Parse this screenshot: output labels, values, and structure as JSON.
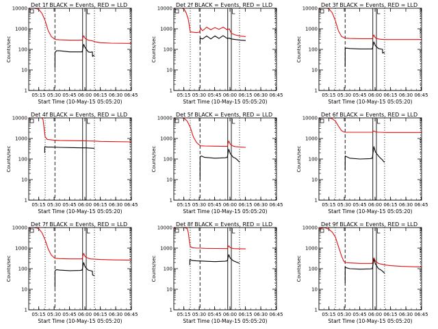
{
  "colors": {
    "events": "#000000",
    "lld": "#e01010",
    "axis": "#000000",
    "background": "#ffffff"
  },
  "figure": {
    "x_label": "Start Time (10-May-15 05:05:20)",
    "y_label": "Counts/sec",
    "x_tick_labels": [
      "05:15",
      "05:30",
      "05:45",
      "06:00",
      "06:15",
      "06:30",
      "06:45"
    ],
    "y_tick_labels": [
      "1",
      "10",
      "100",
      "1000",
      "10000"
    ]
  },
  "chart_data": [
    {
      "type": "line",
      "title": "Det 1f BLACK = Events, RED = LLD",
      "xlabel": "Start Time (10-May-15 05:05:20)",
      "ylabel": "Counts/sec",
      "x_unit": "minutes after 05:05:20",
      "ylim": [
        1,
        10000
      ],
      "y_scale": "log",
      "vlines": [
        {
          "x": 16,
          "style": "dotted"
        },
        {
          "x": 25.5,
          "style": "dashed"
        },
        {
          "x": 52.5,
          "style": "solid"
        },
        {
          "x": 56,
          "style": "solid"
        },
        {
          "x": 64,
          "style": "dotted"
        },
        {
          "x": 99,
          "style": "dotted"
        }
      ],
      "series": [
        {
          "name": "RED = LLD",
          "x": [
            0,
            2,
            5,
            8,
            10,
            13,
            16,
            19,
            22,
            25,
            26,
            30,
            40,
            52,
            53.5,
            55,
            58,
            60,
            62,
            65,
            70,
            80,
            100
          ],
          "y": [
            9500,
            10000,
            10000,
            9500,
            8500,
            5500,
            2500,
            800,
            420,
            320,
            300,
            290,
            280,
            280,
            460,
            340,
            280,
            270,
            260,
            230,
            210,
            200,
            195
          ]
        },
        {
          "name": "BLACK = Events",
          "x": [
            25.5,
            25.6,
            27,
            30,
            40,
            52,
            53.5,
            55,
            58,
            60,
            62,
            62.1,
            63,
            64
          ],
          "y": [
            12,
            70,
            85,
            85,
            75,
            75,
            175,
            120,
            75,
            72,
            75,
            45,
            50,
            48
          ]
        }
      ]
    },
    {
      "type": "line",
      "title": "Det 2f BLACK = Events, RED = LLD",
      "xlabel": "Start Time (10-May-15 05:05:20)",
      "ylabel": "Counts/sec",
      "x_unit": "minutes after 05:05:20",
      "ylim": [
        1,
        10000
      ],
      "y_scale": "log",
      "vlines": [
        {
          "x": 16,
          "style": "dotted"
        },
        {
          "x": 25.5,
          "style": "dashed"
        },
        {
          "x": 52.5,
          "style": "solid"
        },
        {
          "x": 56,
          "style": "solid"
        },
        {
          "x": 64,
          "style": "dotted"
        },
        {
          "x": 99,
          "style": "dotted"
        }
      ],
      "series": [
        {
          "name": "RED = LLD",
          "x": [
            0,
            2,
            5,
            8,
            10,
            12,
            14,
            15,
            16,
            22,
            25,
            26,
            28,
            32,
            36,
            40,
            44,
            48,
            52,
            54,
            56,
            60,
            65,
            70
          ],
          "y": [
            9500,
            10000,
            10000,
            10000,
            9000,
            6000,
            3000,
            1500,
            700,
            650,
            680,
            1100,
            800,
            1200,
            900,
            1150,
            950,
            1200,
            900,
            1000,
            600,
            500,
            440,
            420
          ]
        },
        {
          "name": "BLACK = Events",
          "x": [
            25.5,
            25.6,
            28,
            32,
            36,
            40,
            44,
            48,
            52,
            54,
            56,
            60,
            65,
            70
          ],
          "y": [
            200,
            350,
            320,
            450,
            320,
            450,
            340,
            460,
            340,
            350,
            320,
            300,
            280,
            270
          ]
        }
      ]
    },
    {
      "type": "line",
      "title": "Det 3f BLACK = Events, RED = LLD",
      "xlabel": "Start Time (10-May-15 05:05:20)",
      "ylabel": "Counts/sec",
      "x_unit": "minutes after 05:05:20",
      "ylim": [
        1,
        10000
      ],
      "y_scale": "log",
      "vlines": [
        {
          "x": 16,
          "style": "dotted"
        },
        {
          "x": 25.5,
          "style": "dashed"
        },
        {
          "x": 52.5,
          "style": "solid"
        },
        {
          "x": 56,
          "style": "solid"
        },
        {
          "x": 64,
          "style": "dotted"
        },
        {
          "x": 99,
          "style": "dotted"
        }
      ],
      "series": [
        {
          "name": "RED = LLD",
          "x": [
            0,
            2,
            5,
            8,
            10,
            13,
            16,
            19,
            22,
            25,
            26,
            30,
            40,
            52,
            53.5,
            55,
            58,
            60,
            64,
            70,
            80,
            100
          ],
          "y": [
            9500,
            10000,
            10000,
            10000,
            9000,
            6000,
            2500,
            800,
            420,
            360,
            350,
            340,
            330,
            330,
            500,
            360,
            320,
            310,
            300,
            300,
            300,
            300
          ]
        },
        {
          "name": "BLACK = Events",
          "x": [
            25.5,
            25.6,
            27,
            30,
            40,
            52,
            53.5,
            55,
            58,
            60,
            62,
            62.1,
            63,
            64
          ],
          "y": [
            14,
            110,
            115,
            110,
            105,
            105,
            230,
            150,
            110,
            105,
            100,
            65,
            70,
            65
          ]
        }
      ]
    },
    {
      "type": "line",
      "title": "Det 4f BLACK = Events, RED = LLD",
      "xlabel": "Start Time (10-May-15 05:05:20)",
      "ylabel": "Counts/sec",
      "x_unit": "minutes after 05:05:20",
      "ylim": [
        1,
        10000
      ],
      "y_scale": "log",
      "vlines": [
        {
          "x": 16,
          "style": "dotted"
        },
        {
          "x": 25.5,
          "style": "dashed"
        },
        {
          "x": 52.5,
          "style": "solid"
        },
        {
          "x": 56,
          "style": "solid"
        },
        {
          "x": 64,
          "style": "dotted"
        },
        {
          "x": 99,
          "style": "dotted"
        }
      ],
      "series": [
        {
          "name": "RED = LLD",
          "x": [
            0,
            1,
            2,
            5,
            8,
            10,
            13,
            14,
            15,
            16,
            18,
            22,
            25,
            26,
            30,
            40,
            52,
            56,
            60,
            65,
            70,
            80,
            100
          ],
          "y": [
            9000,
            10000,
            10000,
            10000,
            10000,
            10000,
            10000,
            8000,
            3000,
            1200,
            900,
            850,
            820,
            820,
            800,
            780,
            770,
            760,
            750,
            740,
            720,
            700,
            680
          ]
        },
        {
          "name": "BLACK = Events",
          "x": [
            15.5,
            15.6,
            18,
            22,
            30,
            40,
            52,
            56,
            60,
            64
          ],
          "y": [
            200,
            400,
            380,
            380,
            370,
            360,
            350,
            350,
            340,
            330
          ]
        }
      ]
    },
    {
      "type": "line",
      "title": "Det 5f BLACK = Events, RED = LLD",
      "xlabel": "Start Time (10-May-15 05:05:20)",
      "ylabel": "Counts/sec",
      "x_unit": "minutes after 05:05:20",
      "ylim": [
        1,
        10000
      ],
      "y_scale": "log",
      "vlines": [
        {
          "x": 16,
          "style": "dotted"
        },
        {
          "x": 25.5,
          "style": "dashed"
        },
        {
          "x": 52.5,
          "style": "solid"
        },
        {
          "x": 56,
          "style": "solid"
        },
        {
          "x": 64,
          "style": "dotted"
        },
        {
          "x": 99,
          "style": "dotted"
        }
      ],
      "series": [
        {
          "name": "RED = LLD",
          "x": [
            0,
            2,
            5,
            8,
            10,
            13,
            16,
            19,
            22,
            24,
            25,
            26,
            30,
            40,
            52,
            53.5,
            55,
            58,
            60,
            65,
            70
          ],
          "y": [
            9500,
            10000,
            10000,
            10000,
            9500,
            7000,
            3500,
            1200,
            650,
            520,
            480,
            440,
            430,
            420,
            410,
            750,
            520,
            420,
            400,
            380,
            370
          ]
        },
        {
          "name": "BLACK = Events",
          "x": [
            25.5,
            25.6,
            27,
            30,
            40,
            50,
            52,
            53.5,
            55,
            58,
            60,
            62,
            64
          ],
          "y": [
            10,
            130,
            140,
            120,
            110,
            115,
            120,
            300,
            180,
            120,
            110,
            90,
            70
          ]
        }
      ]
    },
    {
      "type": "line",
      "title": "Det 6f BLACK = Events, RED = LLD",
      "xlabel": "Start Time (10-May-15 05:05:20)",
      "ylabel": "Counts/sec",
      "x_unit": "minutes after 05:05:20",
      "ylim": [
        1,
        10000
      ],
      "y_scale": "log",
      "vlines": [
        {
          "x": 16,
          "style": "dotted"
        },
        {
          "x": 25.5,
          "style": "dashed"
        },
        {
          "x": 52.5,
          "style": "solid"
        },
        {
          "x": 56,
          "style": "solid"
        },
        {
          "x": 64,
          "style": "dotted"
        },
        {
          "x": 99,
          "style": "dotted"
        }
      ],
      "series": [
        {
          "name": "RED = LLD",
          "x": [
            0,
            2,
            5,
            8,
            10,
            13,
            16,
            19,
            22,
            24,
            25,
            26,
            30,
            40,
            52,
            53.5,
            55,
            58,
            60,
            65,
            70,
            80,
            100
          ],
          "y": [
            9500,
            10000,
            10000,
            10000,
            10000,
            9000,
            7000,
            4000,
            2400,
            2100,
            2050,
            2000,
            2000,
            2000,
            2000,
            2300,
            2100,
            2000,
            2000,
            1950,
            1950,
            1950,
            1950
          ]
        },
        {
          "name": "BLACK = Events",
          "x": [
            25.5,
            25.6,
            27,
            30,
            40,
            50,
            52,
            53.5,
            55,
            58,
            60,
            62,
            63,
            64
          ],
          "y": [
            30,
            140,
            130,
            110,
            100,
            105,
            110,
            400,
            220,
            140,
            110,
            90,
            75,
            70
          ]
        }
      ]
    },
    {
      "type": "line",
      "title": "Det 7f BLACK = Events, RED = LLD",
      "xlabel": "Start Time (10-May-15 05:05:20)",
      "ylabel": "Counts/sec",
      "x_unit": "minutes after 05:05:20",
      "ylim": [
        1,
        10000
      ],
      "y_scale": "log",
      "vlines": [
        {
          "x": 16,
          "style": "dotted"
        },
        {
          "x": 25.5,
          "style": "dashed"
        },
        {
          "x": 52.5,
          "style": "solid"
        },
        {
          "x": 56,
          "style": "solid"
        },
        {
          "x": 64,
          "style": "dotted"
        },
        {
          "x": 99,
          "style": "dotted"
        }
      ],
      "series": [
        {
          "name": "RED = LLD",
          "x": [
            0,
            2,
            5,
            8,
            10,
            13,
            16,
            19,
            22,
            25,
            26,
            30,
            40,
            52,
            53.5,
            55,
            58,
            60,
            64,
            70,
            80,
            100
          ],
          "y": [
            9000,
            10000,
            10000,
            9500,
            8500,
            5500,
            2500,
            900,
            460,
            330,
            320,
            310,
            300,
            300,
            560,
            380,
            320,
            300,
            290,
            280,
            270,
            260
          ]
        },
        {
          "name": "BLACK = Events",
          "x": [
            25.5,
            25.6,
            27,
            30,
            40,
            50,
            52,
            53.5,
            55,
            58,
            60,
            62,
            62.1,
            64
          ],
          "y": [
            12,
            80,
            90,
            85,
            80,
            82,
            85,
            200,
            120,
            85,
            80,
            75,
            50,
            45
          ]
        }
      ]
    },
    {
      "type": "line",
      "title": "Det 8f BLACK = Events, RED = LLD",
      "xlabel": "Start Time (10-May-15 05:05:20)",
      "ylabel": "Counts/sec",
      "x_unit": "minutes after 05:05:20",
      "ylim": [
        1,
        10000
      ],
      "y_scale": "log",
      "vlines": [
        {
          "x": 16,
          "style": "dotted"
        },
        {
          "x": 25.5,
          "style": "dashed"
        },
        {
          "x": 52.5,
          "style": "solid"
        },
        {
          "x": 56,
          "style": "solid"
        },
        {
          "x": 64,
          "style": "dotted"
        },
        {
          "x": 99,
          "style": "dotted"
        }
      ],
      "series": [
        {
          "name": "RED = LLD",
          "x": [
            0,
            2,
            5,
            8,
            10,
            13,
            14,
            15,
            16,
            18,
            22,
            25,
            26,
            30,
            40,
            52,
            53.5,
            55,
            58,
            60,
            65,
            70
          ],
          "y": [
            9000,
            10000,
            10000,
            10000,
            10000,
            9000,
            6000,
            2500,
            1200,
            1050,
            1000,
            1000,
            1000,
            980,
            960,
            950,
            1300,
            1050,
            950,
            940,
            930,
            920
          ]
        },
        {
          "name": "BLACK = Events",
          "x": [
            15.5,
            15.6,
            18,
            22,
            30,
            40,
            50,
            52,
            53.5,
            55,
            58,
            60,
            64
          ],
          "y": [
            150,
            280,
            250,
            240,
            230,
            220,
            230,
            240,
            480,
            320,
            240,
            220,
            180
          ]
        }
      ]
    },
    {
      "type": "line",
      "title": "Det 9f BLACK = Events, RED = LLD",
      "xlabel": "Start Time (10-May-15 05:05:20)",
      "ylabel": "Counts/sec",
      "x_unit": "minutes after 05:05:20",
      "ylim": [
        1,
        10000
      ],
      "y_scale": "log",
      "vlines": [
        {
          "x": 16,
          "style": "dotted"
        },
        {
          "x": 25.5,
          "style": "dashed"
        },
        {
          "x": 52.5,
          "style": "solid"
        },
        {
          "x": 56,
          "style": "solid"
        },
        {
          "x": 64,
          "style": "dotted"
        },
        {
          "x": 99,
          "style": "dotted"
        }
      ],
      "series": [
        {
          "name": "RED = LLD",
          "x": [
            0,
            2,
            5,
            8,
            10,
            13,
            16,
            19,
            22,
            24,
            25,
            26,
            30,
            40,
            52,
            53.5,
            55,
            58,
            60,
            65,
            70,
            80,
            100
          ],
          "y": [
            8000,
            9500,
            10000,
            9000,
            8000,
            6000,
            3500,
            1200,
            420,
            240,
            210,
            200,
            190,
            180,
            180,
            340,
            230,
            180,
            170,
            150,
            140,
            130,
            120
          ]
        },
        {
          "name": "BLACK = Events",
          "x": [
            25.5,
            25.6,
            27,
            30,
            40,
            50,
            52,
            53.5,
            55,
            58,
            60,
            62,
            64
          ],
          "y": [
            20,
            120,
            110,
            100,
            95,
            98,
            100,
            300,
            170,
            100,
            90,
            75,
            60
          ]
        }
      ]
    }
  ]
}
